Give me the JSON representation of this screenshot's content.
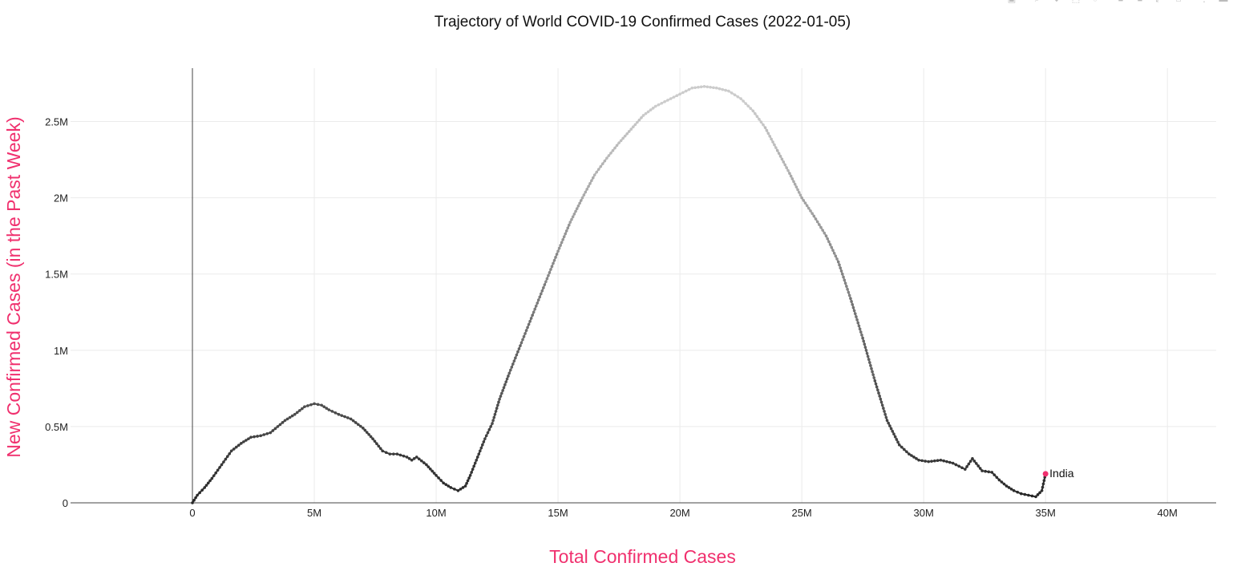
{
  "chart_data": {
    "type": "scatter",
    "title": "Trajectory of World COVID-19 Confirmed Cases (2022-01-05)",
    "xlabel": "Total Confirmed Cases",
    "ylabel": "New Confirmed Cases (in the Past Week)",
    "xlim": [
      -5000000,
      42000000
    ],
    "ylim": [
      0,
      2850000
    ],
    "x_ticks": [
      0,
      5000000,
      10000000,
      15000000,
      20000000,
      25000000,
      30000000,
      35000000,
      40000000
    ],
    "x_tick_labels": [
      "0",
      "5M",
      "10M",
      "15M",
      "20M",
      "25M",
      "30M",
      "35M",
      "40M"
    ],
    "y_ticks": [
      0,
      500000,
      1000000,
      1500000,
      2000000,
      2500000
    ],
    "y_tick_labels": [
      "0",
      "0.5M",
      "1M",
      "1.5M",
      "2M",
      "2.5M"
    ],
    "grid": true,
    "series": [
      {
        "name": "India",
        "color": "#f0306e",
        "x": [
          0,
          200000,
          500000,
          800000,
          1200000,
          1600000,
          2000000,
          2400000,
          2800000,
          3200000,
          3500000,
          3800000,
          4200000,
          4600000,
          5000000,
          5300000,
          5600000,
          6000000,
          6500000,
          7000000,
          7400000,
          7800000,
          8100000,
          8400000,
          8800000,
          9000000,
          9200000,
          9600000,
          10000000,
          10300000,
          10600000,
          10900000,
          11200000,
          11400000,
          11600000,
          11800000,
          12000000,
          12300000,
          12600000,
          13000000,
          13500000,
          14000000,
          14500000,
          15000000,
          15500000,
          16000000,
          16500000,
          17000000,
          17500000,
          18000000,
          18500000,
          19000000,
          19500000,
          20000000,
          20500000,
          21000000,
          21500000,
          22000000,
          22500000,
          23000000,
          23500000,
          24000000,
          24500000,
          25000000,
          25500000,
          26000000,
          26500000,
          27000000,
          27500000,
          28000000,
          28500000,
          29000000,
          29400000,
          29800000,
          30200000,
          30700000,
          31200000,
          31700000,
          32000000,
          32400000,
          32800000,
          33100000,
          33400000,
          33700000,
          34000000,
          34300000,
          34600000,
          34850000,
          35000000
        ],
        "y": [
          0,
          50000,
          100000,
          160000,
          250000,
          340000,
          390000,
          430000,
          440000,
          460000,
          500000,
          540000,
          580000,
          630000,
          650000,
          640000,
          610000,
          580000,
          550000,
          490000,
          420000,
          340000,
          320000,
          320000,
          300000,
          280000,
          300000,
          250000,
          180000,
          130000,
          100000,
          80000,
          110000,
          180000,
          260000,
          340000,
          420000,
          520000,
          680000,
          850000,
          1050000,
          1250000,
          1450000,
          1650000,
          1840000,
          2000000,
          2150000,
          2260000,
          2360000,
          2450000,
          2540000,
          2600000,
          2640000,
          2680000,
          2720000,
          2730000,
          2720000,
          2700000,
          2650000,
          2570000,
          2460000,
          2310000,
          2160000,
          2000000,
          1880000,
          1750000,
          1580000,
          1340000,
          1080000,
          800000,
          540000,
          380000,
          320000,
          280000,
          270000,
          280000,
          260000,
          220000,
          290000,
          210000,
          200000,
          150000,
          110000,
          80000,
          60000,
          50000,
          40000,
          80000,
          190000
        ]
      }
    ],
    "annotation": "India"
  },
  "modebar": [
    "camera-icon",
    "zoom-icon",
    "pan-icon",
    "box-select-icon",
    "lasso-icon",
    "zoom-in-icon",
    "zoom-out-icon",
    "autoscale-icon",
    "reset-axes-icon",
    "spike-icon",
    "hover-icon"
  ]
}
